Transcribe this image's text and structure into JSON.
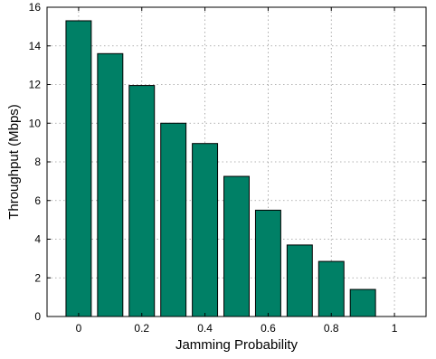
{
  "chart_data": {
    "type": "bar",
    "x": [
      0,
      0.1,
      0.2,
      0.3,
      0.4,
      0.5,
      0.6,
      0.7,
      0.8,
      0.9,
      1.0
    ],
    "values": [
      15.3,
      13.6,
      11.95,
      10.0,
      8.95,
      7.25,
      5.5,
      3.7,
      2.85,
      1.4,
      0.0
    ],
    "xlabel": "Jamming Probability",
    "ylabel": "Throughput (Mbps)",
    "xlim": [
      -0.1,
      1.1
    ],
    "ylim": [
      0,
      16
    ],
    "xticks": [
      0,
      0.2,
      0.4,
      0.6,
      0.8,
      1
    ],
    "xtick_labels": [
      "0",
      "0.2",
      "0.4",
      "0.6",
      "0.8",
      "1"
    ],
    "yticks": [
      0,
      2,
      4,
      6,
      8,
      10,
      12,
      14,
      16
    ],
    "ytick_labels": [
      "0",
      "2",
      "4",
      "6",
      "8",
      "10",
      "12",
      "14",
      "16"
    ],
    "grid": true,
    "bar_color": "#008066",
    "edge_color": "#000000"
  }
}
